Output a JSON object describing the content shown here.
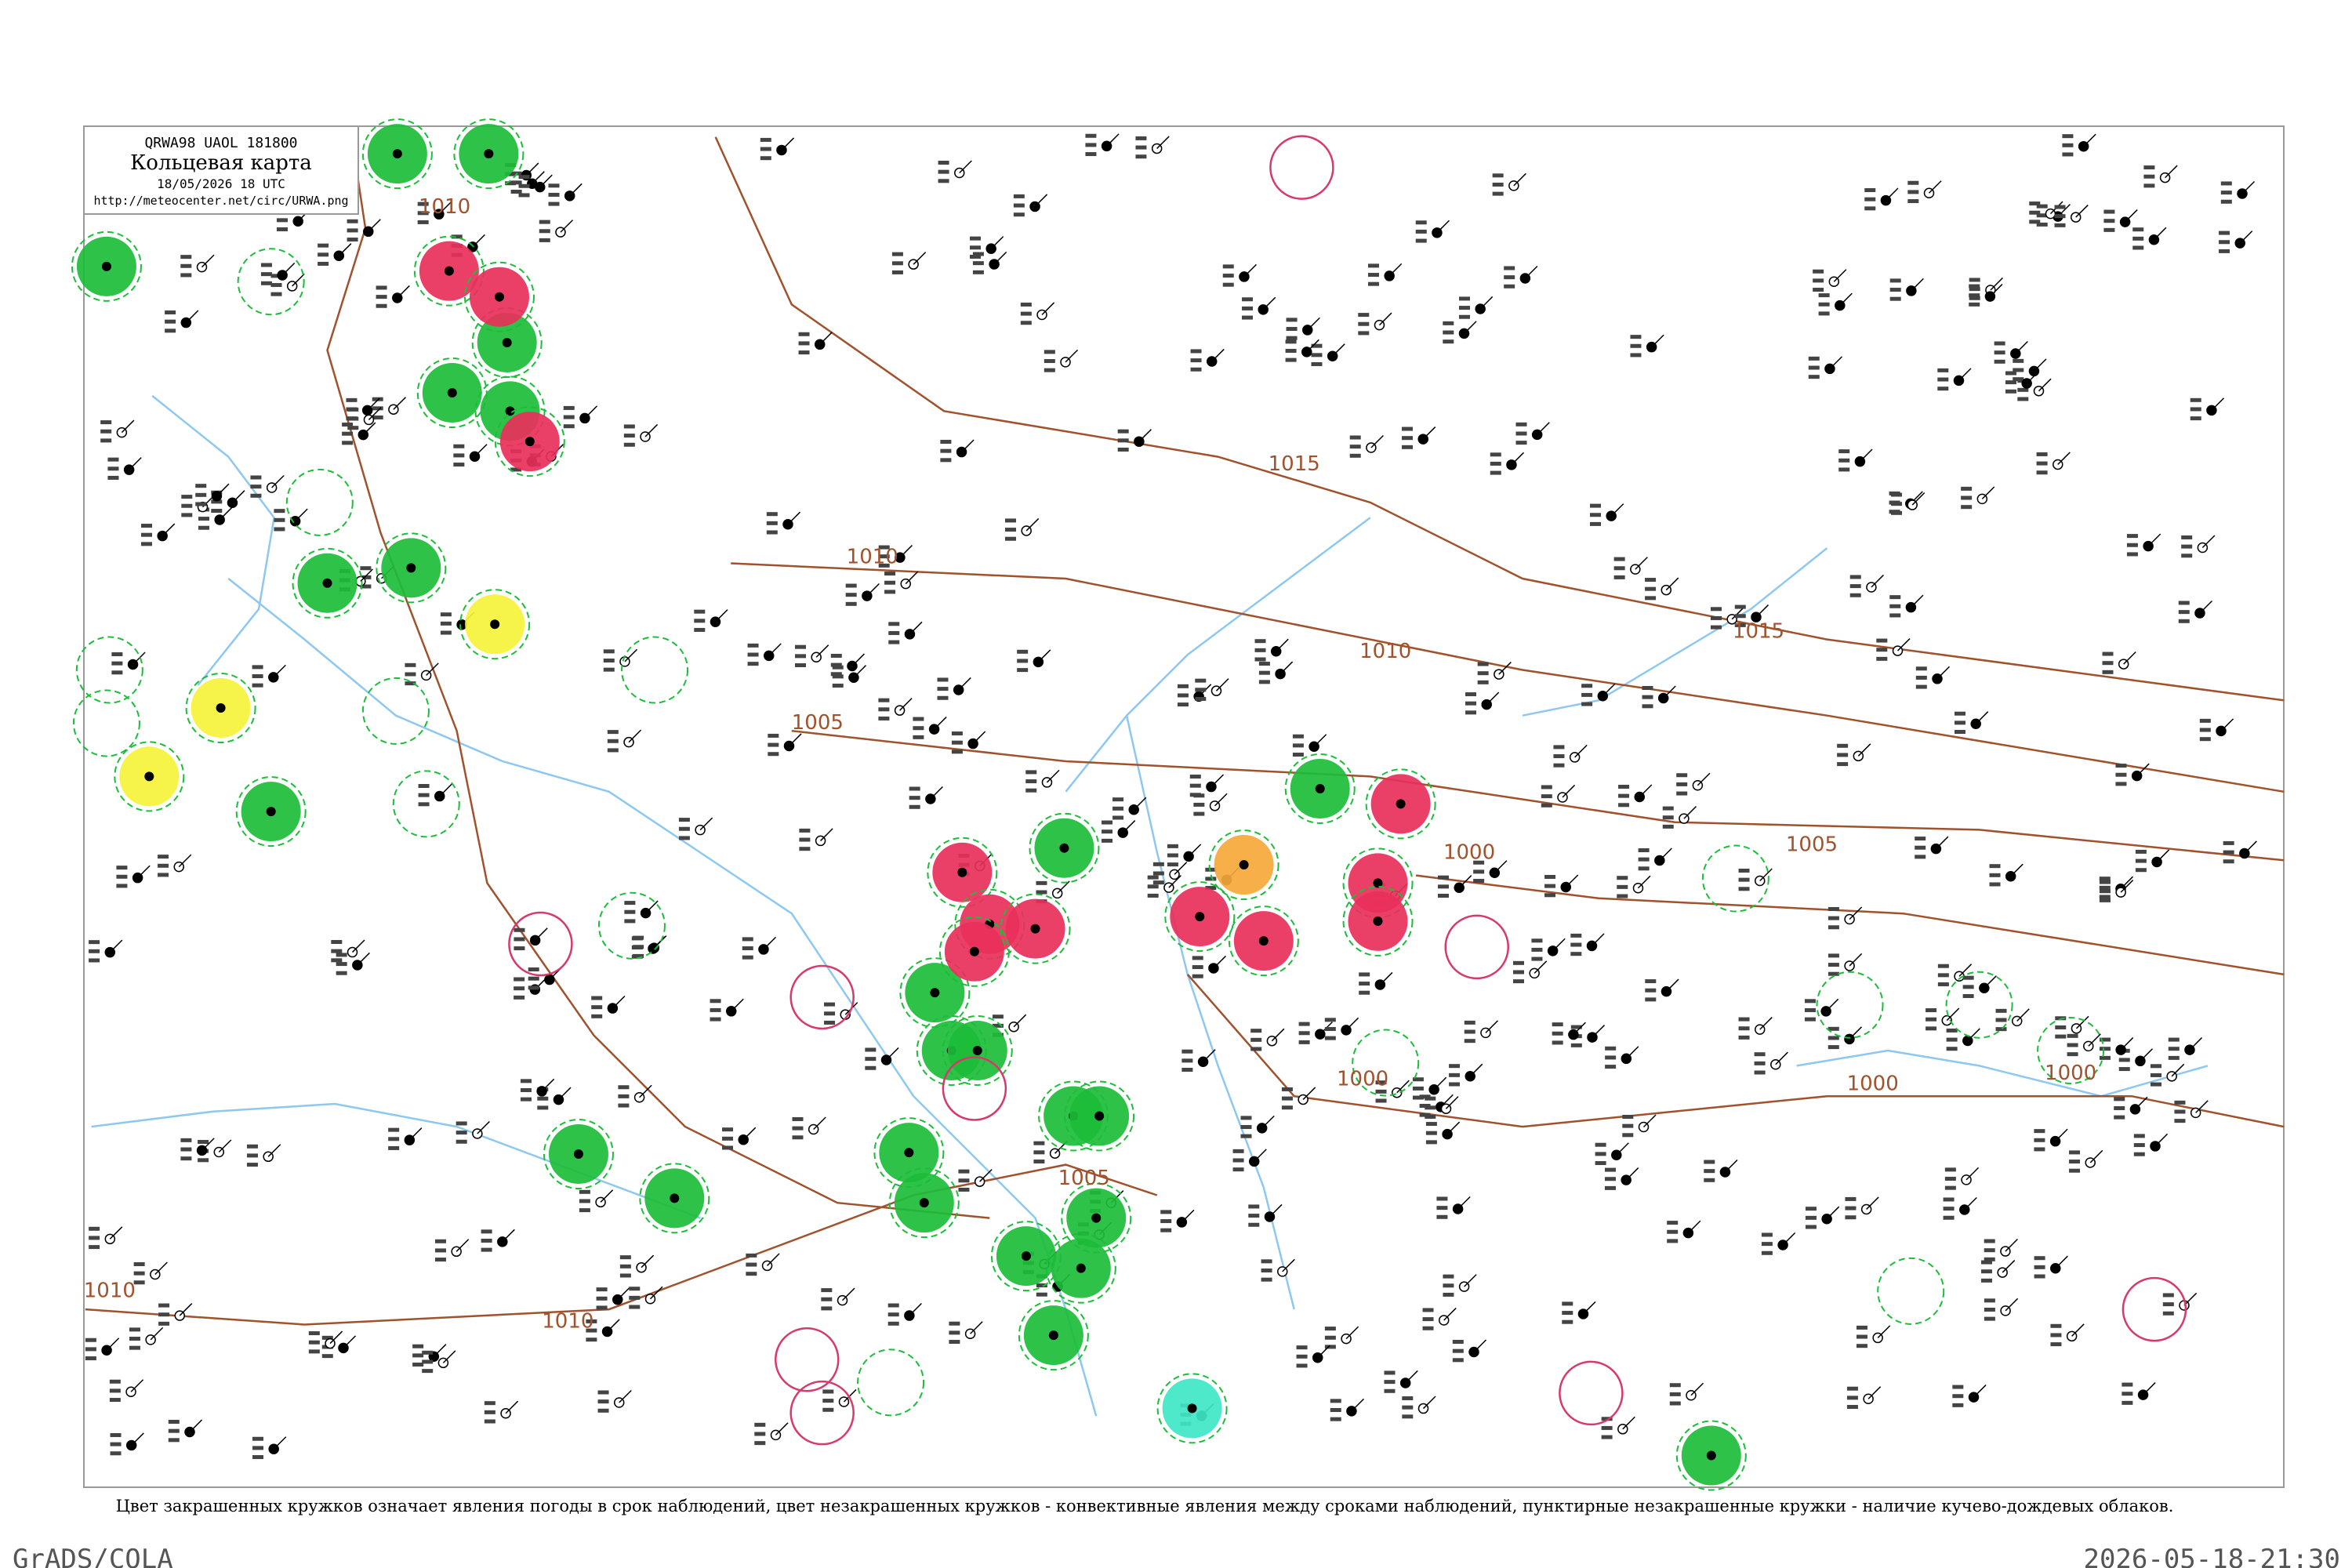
{
  "header": {
    "code": "QRWA98 UAOL 181800",
    "title": "Кольцевая карта",
    "date": "18/05/2026 18 UTC",
    "url": "http://meteocenter.net/circ/URWA.png"
  },
  "isobar_labels": [
    "1010",
    "1015",
    "1010",
    "1015",
    "1010",
    "1005",
    "1005",
    "1000",
    "1000",
    "1000",
    "1005",
    "1010",
    "1000",
    "1010"
  ],
  "caption": "Цвет закрашенных кружков означает явления погоды в срок наблюдений, цвет незакрашенных кружков - конвективные явления между сроками наблюдений, пунктирные незакрашенные кружки - наличие кучево-дождевых облаков.",
  "footer": {
    "left": "GrADS/COLA",
    "right": "2026-05-18-21:30"
  }
}
